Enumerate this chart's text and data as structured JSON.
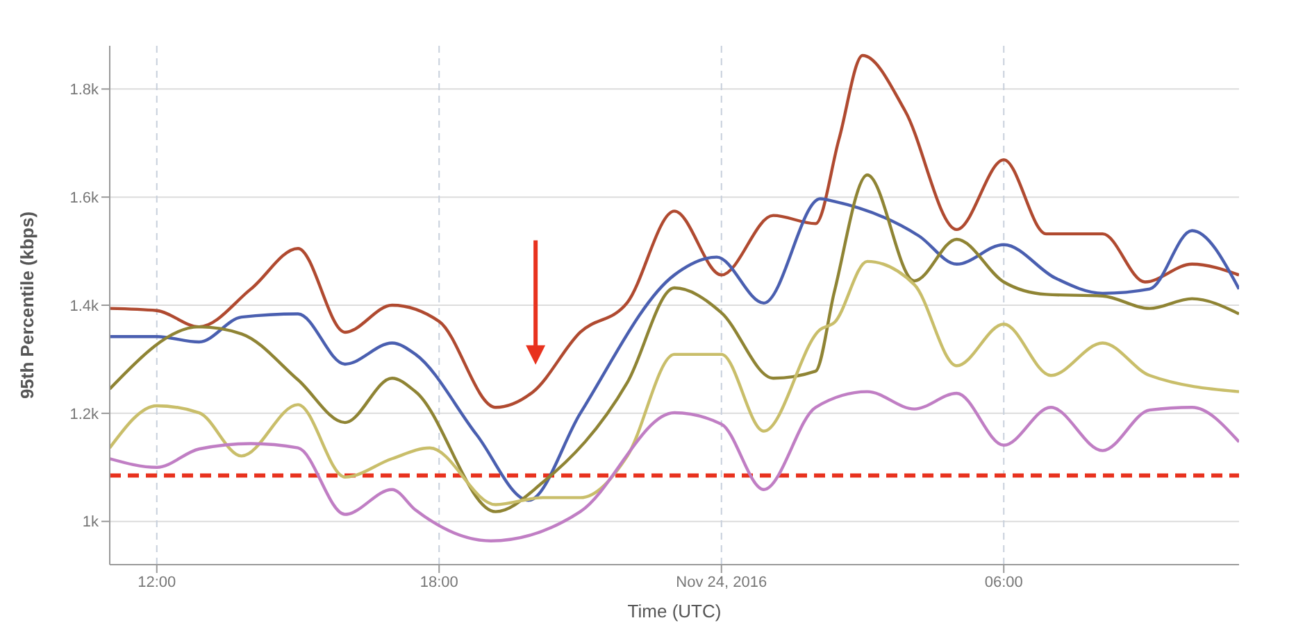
{
  "chart_data": {
    "type": "line",
    "xlabel": "Time (UTC)",
    "ylabel": "95th Percentile (kbps)",
    "xlim": [
      "2016-11-23T11:00",
      "2016-11-24T11:00"
    ],
    "xticks": [
      {
        "value": "2016-11-23T12:00",
        "label": "12:00"
      },
      {
        "value": "2016-11-23T18:00",
        "label": "18:00"
      },
      {
        "value": "2016-11-24T00:00",
        "label": "Nov 24, 2016"
      },
      {
        "value": "2016-11-24T06:00",
        "label": "06:00"
      }
    ],
    "ylim": [
      920,
      1880
    ],
    "yticks": [
      {
        "value": 1000,
        "label": "1k"
      },
      {
        "value": 1200,
        "label": "1.2k"
      },
      {
        "value": 1400,
        "label": "1.4k"
      },
      {
        "value": 1600,
        "label": "1.6k"
      },
      {
        "value": 1800,
        "label": "1.8k"
      }
    ],
    "grid": true,
    "legend": false,
    "marker": "none",
    "line_style": "solid",
    "ref_lines": [
      {
        "axis": "y",
        "value": 1085,
        "label": null,
        "color": "#e8321e",
        "line_style": "dashed"
      }
    ],
    "series": [
      {
        "color": "#b04a30",
        "x": [
          "2016-11-23T11:00",
          "2016-11-23T12:00",
          "2016-11-23T12:54",
          "2016-11-23T14:00",
          "2016-11-23T15:00",
          "2016-11-23T16:00",
          "2016-11-23T17:00",
          "2016-11-23T18:00",
          "2016-11-23T19:12",
          "2016-11-23T20:00",
          "2016-11-23T21:00",
          "2016-11-23T22:00",
          "2016-11-23T23:00",
          "2016-11-24T00:00",
          "2016-11-24T01:06",
          "2016-11-24T02:00",
          "2016-11-24T02:30",
          "2016-11-24T03:00",
          "2016-11-24T03:54",
          "2016-11-24T05:00",
          "2016-11-24T06:00",
          "2016-11-24T06:54",
          "2016-11-24T08:06",
          "2016-11-24T09:00",
          "2016-11-24T10:00",
          "2016-11-24T11:00"
        ],
        "values": [
          1394,
          1390,
          1360,
          1430,
          1505,
          1350,
          1400,
          1370,
          1211,
          1240,
          1350,
          1405,
          1574,
          1456,
          1566,
          1551,
          1708,
          1862,
          1760,
          1540,
          1669,
          1532,
          1532,
          1443,
          1476,
          1456
        ]
      },
      {
        "color": "#4a5fb0",
        "x": [
          "2016-11-23T11:00",
          "2016-11-23T12:00",
          "2016-11-23T12:54",
          "2016-11-23T13:48",
          "2016-11-23T15:00",
          "2016-11-23T16:00",
          "2016-11-23T17:00",
          "2016-11-23T17:30",
          "2016-11-23T18:48",
          "2016-11-23T19:54",
          "2016-11-23T21:00",
          "2016-11-23T23:00",
          "2016-11-23T23:54",
          "2016-11-24T00:54",
          "2016-11-24T02:06",
          "2016-11-24T02:24",
          "2016-11-24T04:12",
          "2016-11-24T05:00",
          "2016-11-24T06:00",
          "2016-11-24T07:06",
          "2016-11-24T08:06",
          "2016-11-24T09:06",
          "2016-11-24T10:00",
          "2016-11-24T11:00"
        ],
        "values": [
          1342,
          1342,
          1332,
          1378,
          1384,
          1291,
          1330,
          1309,
          1160,
          1039,
          1200,
          1456,
          1489,
          1404,
          1597,
          1592,
          1528,
          1476,
          1512,
          1450,
          1422,
          1430,
          1538,
          1430
        ]
      },
      {
        "color": "#8f8434",
        "x": [
          "2016-11-23T11:00",
          "2016-11-23T12:54",
          "2016-11-23T13:48",
          "2016-11-23T15:00",
          "2016-11-23T16:00",
          "2016-11-23T17:00",
          "2016-11-23T17:30",
          "2016-11-23T19:12",
          "2016-11-23T20:12",
          "2016-11-23T22:00",
          "2016-11-23T23:00",
          "2016-11-24T00:00",
          "2016-11-24T01:06",
          "2016-11-24T02:00",
          "2016-11-24T02:24",
          "2016-11-24T03:06",
          "2016-11-24T04:06",
          "2016-11-24T05:00",
          "2016-11-24T06:00",
          "2016-11-24T06:54",
          "2016-11-24T08:06",
          "2016-11-24T09:06",
          "2016-11-24T10:00",
          "2016-11-24T11:00"
        ],
        "values": [
          1245,
          1360,
          1347,
          1262,
          1183,
          1265,
          1240,
          1018,
          1072,
          1257,
          1432,
          1386,
          1265,
          1278,
          1425,
          1641,
          1445,
          1522,
          1443,
          1420,
          1417,
          1394,
          1412,
          1384
        ]
      },
      {
        "color": "#c9be6a",
        "x": [
          "2016-11-23T11:00",
          "2016-11-23T12:00",
          "2016-11-23T12:54",
          "2016-11-23T13:48",
          "2016-11-23T15:00",
          "2016-11-23T16:00",
          "2016-11-23T17:00",
          "2016-11-23T17:48",
          "2016-11-23T19:12",
          "2016-11-23T20:12",
          "2016-11-23T21:00",
          "2016-11-23T22:00",
          "2016-11-23T23:00",
          "2016-11-24T00:00",
          "2016-11-24T00:54",
          "2016-11-24T02:06",
          "2016-11-24T02:24",
          "2016-11-24T03:06",
          "2016-11-24T04:06",
          "2016-11-24T05:00",
          "2016-11-24T06:00",
          "2016-11-24T07:00",
          "2016-11-24T08:06",
          "2016-11-24T09:06",
          "2016-11-24T11:00"
        ],
        "values": [
          1136,
          1214,
          1201,
          1121,
          1216,
          1082,
          1116,
          1136,
          1031,
          1044,
          1044,
          1121,
          1309,
          1309,
          1167,
          1355,
          1368,
          1481,
          1438,
          1288,
          1365,
          1270,
          1330,
          1270,
          1240
        ]
      },
      {
        "color": "#c07ec4",
        "x": [
          "2016-11-23T11:00",
          "2016-11-23T12:00",
          "2016-11-23T12:54",
          "2016-11-23T14:00",
          "2016-11-23T15:00",
          "2016-11-23T16:00",
          "2016-11-23T17:00",
          "2016-11-23T17:30",
          "2016-11-23T19:06",
          "2016-11-23T21:00",
          "2016-11-23T23:00",
          "2016-11-24T00:00",
          "2016-11-24T00:54",
          "2016-11-24T02:00",
          "2016-11-24T03:06",
          "2016-11-24T04:06",
          "2016-11-24T05:00",
          "2016-11-24T06:00",
          "2016-11-24T07:00",
          "2016-11-24T08:06",
          "2016-11-24T09:06",
          "2016-11-24T10:00",
          "2016-11-24T11:00"
        ],
        "values": [
          1116,
          1100,
          1134,
          1144,
          1136,
          1013,
          1059,
          1021,
          964,
          1018,
          1201,
          1180,
          1059,
          1211,
          1240,
          1208,
          1237,
          1141,
          1211,
          1131,
          1206,
          1211,
          1147
        ]
      }
    ]
  }
}
